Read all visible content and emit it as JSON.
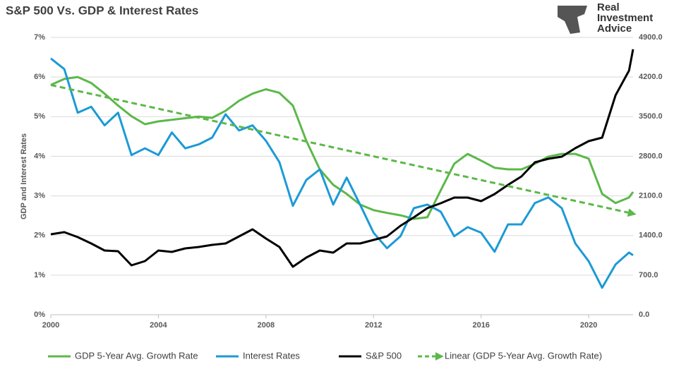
{
  "chart_data": {
    "type": "line",
    "title": "S&P 500 Vs. GDP & Interest Rates",
    "y_label": "GDP and Interest Rates",
    "x": [
      2000,
      2000.5,
      2001,
      2001.5,
      2002,
      2002.5,
      2003,
      2003.5,
      2004,
      2004.5,
      2005,
      2005.5,
      2006,
      2006.5,
      2007,
      2007.5,
      2008,
      2008.5,
      2009,
      2009.5,
      2010,
      2010.5,
      2011,
      2011.5,
      2012,
      2012.5,
      2013,
      2013.5,
      2014,
      2014.5,
      2015,
      2015.5,
      2016,
      2016.5,
      2017,
      2017.5,
      2018,
      2018.5,
      2019,
      2019.5,
      2020,
      2020.5,
      2021,
      2021.5,
      2021.65
    ],
    "series": [
      {
        "name": "GDP 5-Year Avg. Growth Rate",
        "color": "#5cb84a",
        "values": [
          5.8,
          5.95,
          6.0,
          5.85,
          5.58,
          5.28,
          5.01,
          4.81,
          4.88,
          4.92,
          4.96,
          5.0,
          4.97,
          5.15,
          5.4,
          5.58,
          5.69,
          5.6,
          5.28,
          4.39,
          3.67,
          3.28,
          3.05,
          2.78,
          2.64,
          2.57,
          2.51,
          2.42,
          2.46,
          3.14,
          3.81,
          4.06,
          3.89,
          3.71,
          3.67,
          3.67,
          3.81,
          3.99,
          4.06,
          4.06,
          3.94,
          3.05,
          2.82,
          2.96,
          3.1
        ]
      },
      {
        "name": "Interest Rates",
        "color": "#1c9ad6",
        "values": [
          6.47,
          6.2,
          5.1,
          5.25,
          4.78,
          5.1,
          4.03,
          4.2,
          4.03,
          4.6,
          4.2,
          4.3,
          4.47,
          5.06,
          4.65,
          4.78,
          4.39,
          3.85,
          2.75,
          3.4,
          3.67,
          2.78,
          3.46,
          2.78,
          2.07,
          1.68,
          1.98,
          2.69,
          2.78,
          2.6,
          1.98,
          2.21,
          2.07,
          1.59,
          2.28,
          2.28,
          2.82,
          2.96,
          2.69,
          1.8,
          1.35,
          0.68,
          1.27,
          1.57,
          1.5
        ]
      },
      {
        "name": "S&P 500",
        "color": "#000000",
        "axis": "y2",
        "values": [
          1421,
          1459,
          1371,
          1259,
          1135,
          1122,
          873,
          948,
          1135,
          1110,
          1172,
          1197,
          1234,
          1259,
          1384,
          1509,
          1347,
          1197,
          848,
          1010,
          1135,
          1097,
          1259,
          1259,
          1322,
          1384,
          1571,
          1721,
          1883,
          1970,
          2070,
          2070,
          2007,
          2132,
          2294,
          2444,
          2693,
          2755,
          2793,
          2942,
          3067,
          3130,
          3877,
          4314,
          4690
        ]
      },
      {
        "name": "Linear (GDP 5-Year Avg. Growth Rate)",
        "color": "#5cb84a",
        "dashed": true,
        "x": [
          2000,
          2021.65
        ],
        "values": [
          5.8,
          2.55
        ]
      }
    ],
    "xlim": [
      2000,
      2021.65
    ],
    "xticks": [
      2000,
      2004,
      2008,
      2012,
      2016,
      2020
    ],
    "ylim": [
      0,
      7
    ],
    "yticks": [
      {
        "value": 0,
        "label": "0%"
      },
      {
        "value": 1,
        "label": "1%"
      },
      {
        "value": 2,
        "label": "2%"
      },
      {
        "value": 3,
        "label": "3%"
      },
      {
        "value": 4,
        "label": "4%"
      },
      {
        "value": 5,
        "label": "5%"
      },
      {
        "value": 6,
        "label": "6%"
      },
      {
        "value": 7,
        "label": "7%"
      }
    ],
    "y2lim": [
      0,
      4900
    ],
    "y2ticks": [
      {
        "value": 0,
        "label": "0.0"
      },
      {
        "value": 700,
        "label": "700.0"
      },
      {
        "value": 1400,
        "label": "1400.0"
      },
      {
        "value": 2100,
        "label": "2100.0"
      },
      {
        "value": 2800,
        "label": "2800.0"
      },
      {
        "value": 3500,
        "label": "3500.0"
      },
      {
        "value": 4200,
        "label": "4200.0"
      },
      {
        "value": 4900,
        "label": "4900.0"
      }
    ],
    "grid": true,
    "legend": "bottom"
  },
  "logo": [
    "Real",
    "Investment",
    "Advice"
  ]
}
